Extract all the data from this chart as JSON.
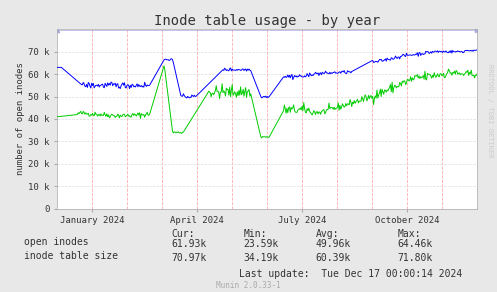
{
  "title": "Inode table usage - by year",
  "ylabel": "number of open inodes",
  "bg_color": "#e8e8e8",
  "plot_bg_color": "#ffffff",
  "ylim": [
    0,
    80000
  ],
  "yticks": [
    0,
    10000,
    20000,
    30000,
    40000,
    50000,
    60000,
    70000
  ],
  "ytick_labels": [
    "0",
    "10 k",
    "20 k",
    "30 k",
    "40 k",
    "50 k",
    "60 k",
    "70 k"
  ],
  "xtick_labels": [
    "January 2024",
    "April 2024",
    "July 2024",
    "October 2024"
  ],
  "xtick_positions": [
    0.083,
    0.333,
    0.583,
    0.833
  ],
  "month_positions": [
    0.083,
    0.167,
    0.25,
    0.333,
    0.417,
    0.5,
    0.583,
    0.667,
    0.75,
    0.833,
    0.917
  ],
  "legend_labels": [
    "open inodes",
    "inode table size"
  ],
  "legend_colors": [
    "#00cc00",
    "#0000ff"
  ],
  "stats_cur": [
    "61.93k",
    "70.97k"
  ],
  "stats_min": [
    "23.59k",
    "34.19k"
  ],
  "stats_avg": [
    "49.96k",
    "60.39k"
  ],
  "stats_max": [
    "64.46k",
    "71.80k"
  ],
  "last_update": "Tue Dec 17 00:00:14 2024",
  "munin_label": "Munin 2.0.33-1",
  "rrdtool_label": "RRDTOOL / TOBI OETIKER",
  "font_color": "#333333",
  "title_fontsize": 10,
  "axis_fontsize": 7,
  "stats_fontsize": 7,
  "watermark_fontsize": 6
}
